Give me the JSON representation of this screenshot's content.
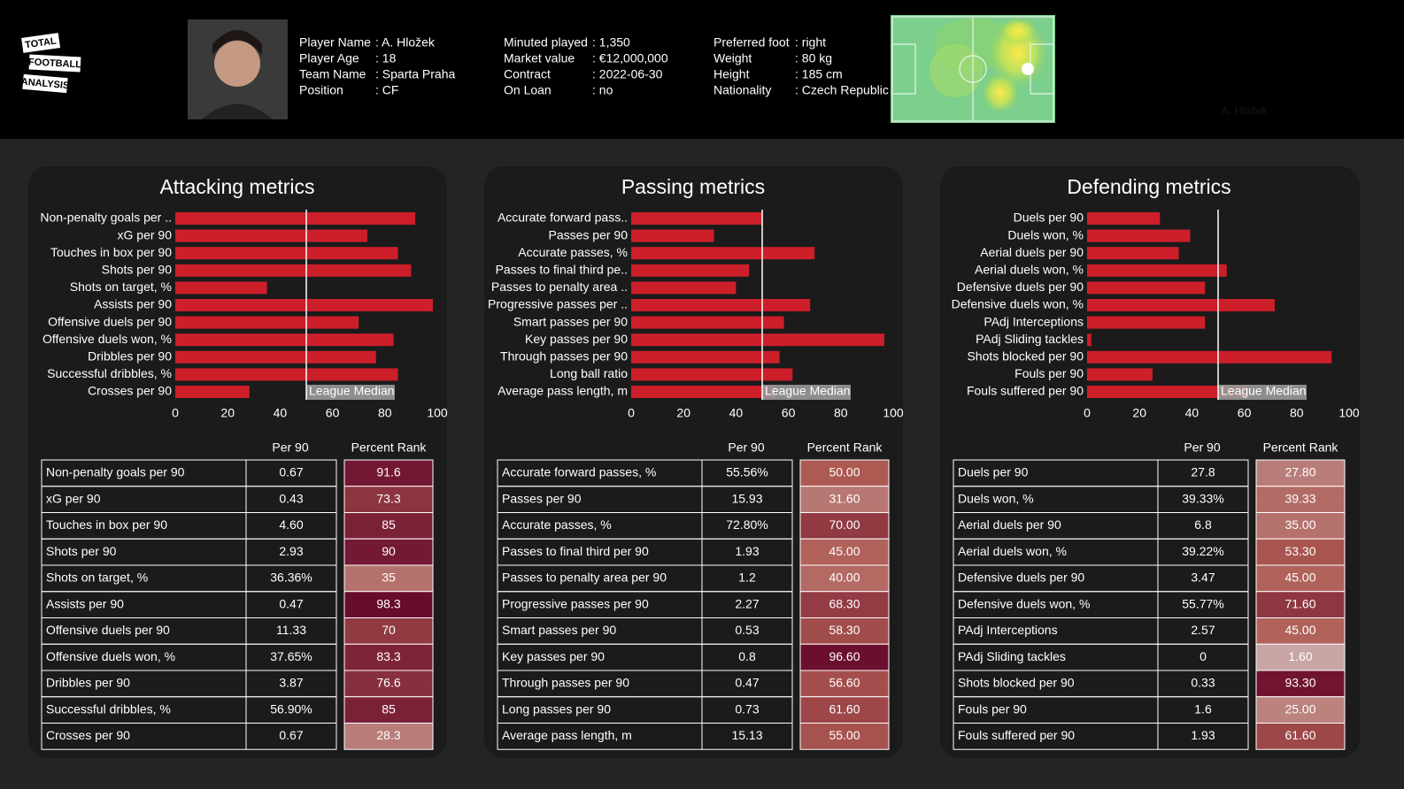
{
  "header": {
    "logo": [
      "TOTAL",
      "FOOTBALL",
      "ANALYSIS"
    ],
    "info": [
      [
        {
          "label": "Player Name",
          "value": ": A. Hložek"
        },
        {
          "label": "Player Age",
          "value": ": 18"
        },
        {
          "label": "Team Name",
          "value": ": Sparta Praha"
        },
        {
          "label": "Position",
          "value": ": CF"
        }
      ],
      [
        {
          "label": "Minuted played",
          "value": ": 1,350"
        },
        {
          "label": "Market value",
          "value": ": €12,000,000"
        },
        {
          "label": "Contract",
          "value": ": 2022-06-30"
        },
        {
          "label": "On Loan",
          "value": ": no"
        }
      ],
      [
        {
          "label": "Preferred foot",
          "value": ": right"
        },
        {
          "label": "Weight",
          "value": ": 80 kg"
        },
        {
          "label": "Height",
          "value": ": 185 cm"
        },
        {
          "label": "Nationality",
          "value": ": Czech Republic"
        }
      ]
    ],
    "heatmap_caption": "A. Hložek"
  },
  "chart_data": [
    {
      "type": "bar",
      "title": "Attacking metrics",
      "color": "#cc1f2a",
      "categories": [
        "Non-penalty goals per ..",
        "xG per 90",
        "Touches in box per 90",
        "Shots per 90",
        "Shots on target, %",
        "Assists per 90",
        "Offensive duels per 90",
        "Offensive duels won, %",
        "Dribbles per 90",
        "Successful dribbles, %",
        "Crosses per 90"
      ],
      "values": [
        91.6,
        73.3,
        85,
        90,
        35,
        98.3,
        70,
        83.3,
        76.6,
        85,
        28.3
      ],
      "xlim": [
        0,
        100
      ],
      "xticks": [
        0,
        20,
        40,
        60,
        80,
        100
      ],
      "median": 50,
      "median_label": "League Median"
    },
    {
      "type": "bar",
      "title": "Passing metrics",
      "color": "#cc1f2a",
      "categories": [
        "Accurate forward pass..",
        "Passes per 90",
        "Accurate passes, %",
        "Passes to final third pe..",
        "Passes to penalty area ..",
        "Progressive passes per ..",
        "Smart passes per 90",
        "Key passes per 90",
        "Through passes per 90",
        "Long ball ratio",
        "Average pass length, m"
      ],
      "values": [
        50,
        31.6,
        70,
        45,
        40,
        68.3,
        58.3,
        96.6,
        56.6,
        61.6,
        55
      ],
      "xlim": [
        0,
        100
      ],
      "xticks": [
        0,
        20,
        40,
        60,
        80,
        100
      ],
      "median": 50,
      "median_label": "League Median"
    },
    {
      "type": "bar",
      "title": "Defending metrics",
      "color": "#cc1f2a",
      "categories": [
        "Duels per 90",
        "Duels won, %",
        "Aerial duels per 90",
        "Aerial duels won, %",
        "Defensive duels per 90",
        "Defensive duels won, %",
        "PAdj Interceptions",
        "PAdj Sliding tackles",
        "Shots blocked per 90",
        "Fouls per 90",
        "Fouls suffered per 90"
      ],
      "values": [
        27.8,
        39.33,
        35,
        53.3,
        45,
        71.6,
        45,
        1.6,
        93.3,
        25,
        61.6
      ],
      "xlim": [
        0,
        100
      ],
      "xticks": [
        0,
        20,
        40,
        60,
        80,
        100
      ],
      "median": 50,
      "median_label": "League Median"
    }
  ],
  "tables": [
    {
      "columns": [
        "Per 90",
        "Percent Rank"
      ],
      "rows": [
        [
          "Non-penalty goals per 90",
          "0.67",
          "91.6"
        ],
        [
          "xG per 90",
          "0.43",
          "73.3"
        ],
        [
          "Touches in box per 90",
          "4.60",
          "85"
        ],
        [
          "Shots per 90",
          "2.93",
          "90"
        ],
        [
          "Shots on target, %",
          "36.36%",
          "35"
        ],
        [
          "Assists per 90",
          "0.47",
          "98.3"
        ],
        [
          "Offensive duels per 90",
          "11.33",
          "70"
        ],
        [
          "Offensive duels won, %",
          "37.65%",
          "83.3"
        ],
        [
          "Dribbles per 90",
          "3.87",
          "76.6"
        ],
        [
          "Successful dribbles, %",
          "56.90%",
          "85"
        ],
        [
          "Crosses per 90",
          "0.67",
          "28.3"
        ]
      ]
    },
    {
      "columns": [
        "Per 90",
        "Percent Rank"
      ],
      "rows": [
        [
          "Accurate forward passes, %",
          "55.56%",
          "50.00"
        ],
        [
          "Passes per 90",
          "15.93",
          "31.60"
        ],
        [
          "Accurate passes, %",
          "72.80%",
          "70.00"
        ],
        [
          "Passes to final third per 90",
          "1.93",
          "45.00"
        ],
        [
          "Passes to penalty area per 90",
          "1.2",
          "40.00"
        ],
        [
          "Progressive passes per 90",
          "2.27",
          "68.30"
        ],
        [
          "Smart passes per 90",
          "0.53",
          "58.30"
        ],
        [
          "Key passes per 90",
          "0.8",
          "96.60"
        ],
        [
          "Through passes per 90",
          "0.47",
          "56.60"
        ],
        [
          "Long passes per 90",
          "0.73",
          "61.60"
        ],
        [
          "Average pass length, m",
          "15.13",
          "55.00"
        ]
      ]
    },
    {
      "columns": [
        "Per 90",
        "Percent Rank"
      ],
      "rows": [
        [
          "Duels per 90",
          "27.8",
          "27.80"
        ],
        [
          "Duels won, %",
          "39.33%",
          "39.33"
        ],
        [
          "Aerial duels per 90",
          "6.8",
          "35.00"
        ],
        [
          "Aerial duels won, %",
          "39.22%",
          "53.30"
        ],
        [
          "Defensive duels per 90",
          "3.47",
          "45.00"
        ],
        [
          "Defensive duels won, %",
          "55.77%",
          "71.60"
        ],
        [
          "PAdj Interceptions",
          "2.57",
          "45.00"
        ],
        [
          "PAdj Sliding tackles",
          "0",
          "1.60"
        ],
        [
          "Shots blocked per 90",
          "0.33",
          "93.30"
        ],
        [
          "Fouls per 90",
          "1.6",
          "25.00"
        ],
        [
          "Fouls suffered per 90",
          "1.93",
          "61.60"
        ]
      ]
    }
  ],
  "rank_colors": [
    "#c9a9a9",
    "#ad5a52",
    "#66092b"
  ]
}
